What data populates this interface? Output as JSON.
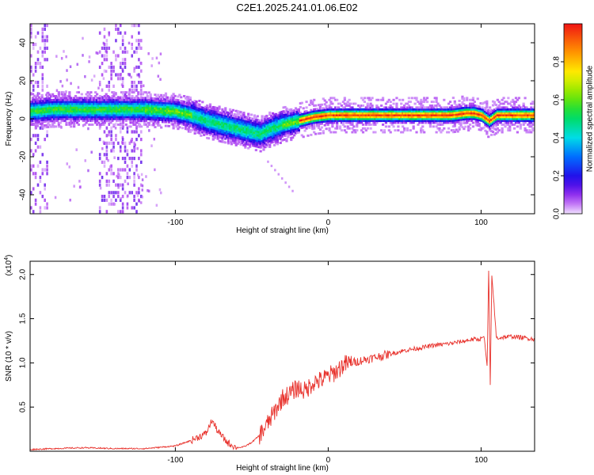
{
  "title": "C2E1.2025.241.01.06.E02",
  "chart_data": [
    {
      "type": "heatmap",
      "name": "spectrogram",
      "xlabel": "Height of straight line (km)",
      "ylabel": "Frequency (Hz)",
      "xlim": [
        -195,
        135
      ],
      "ylim": [
        -50,
        50
      ],
      "xticks": [
        -100,
        0,
        100
      ],
      "yticks": [
        -40,
        -20,
        0,
        20,
        40
      ],
      "colorbar": {
        "label": "Normalized spectral amplitude",
        "range": [
          0.0,
          1.0
        ],
        "ticks": [
          "0.0",
          "0.2",
          "0.4",
          "0.6",
          "0.8"
        ]
      },
      "ridge": {
        "description": "dominant frequency band center (Hz) vs height (km)",
        "x": [
          -195,
          -180,
          -160,
          -140,
          -120,
          -100,
          -90,
          -80,
          -70,
          -60,
          -50,
          -45,
          -40,
          -30,
          -20,
          -10,
          0,
          10,
          20,
          40,
          60,
          80,
          90,
          95,
          100,
          105,
          110,
          135
        ],
        "y": [
          4,
          5,
          5,
          5,
          5,
          4,
          2,
          -1,
          -3,
          -5,
          -7,
          -8,
          -6,
          -3,
          -1,
          1,
          2,
          2,
          2,
          2,
          2,
          2,
          3,
          3,
          2,
          -1,
          2,
          2
        ]
      }
    },
    {
      "type": "line",
      "name": "snr",
      "xlabel": "Height of straight line (km)",
      "ylabel": "SNR (10 * v/v)",
      "y_multiplier_label": "(x10",
      "y_multiplier_exp": "4",
      "xlim": [
        -195,
        135
      ],
      "ylim": [
        0,
        2.15
      ],
      "xticks": [
        -100,
        0,
        100
      ],
      "yticks": [
        0.5,
        1.0,
        1.5,
        2.0
      ],
      "ytick_labels": [
        "0.5",
        "1.0",
        "1.5",
        "2.0"
      ],
      "color": "#e8322c",
      "x": [
        -195,
        -180,
        -160,
        -140,
        -120,
        -100,
        -90,
        -80,
        -76,
        -72,
        -66,
        -60,
        -55,
        -50,
        -45,
        -40,
        -35,
        -30,
        -25,
        -20,
        -15,
        -10,
        -5,
        0,
        5,
        10,
        15,
        20,
        30,
        40,
        50,
        60,
        70,
        80,
        90,
        95,
        98,
        100,
        102,
        104,
        105,
        106,
        107,
        110,
        120,
        135
      ],
      "y": [
        0.02,
        0.03,
        0.04,
        0.03,
        0.03,
        0.06,
        0.12,
        0.2,
        0.35,
        0.22,
        0.1,
        0.04,
        0.05,
        0.1,
        0.18,
        0.3,
        0.45,
        0.6,
        0.65,
        0.72,
        0.68,
        0.78,
        0.8,
        0.85,
        0.9,
        0.98,
        1.0,
        1.02,
        1.06,
        1.1,
        1.14,
        1.17,
        1.2,
        1.22,
        1.25,
        1.27,
        1.26,
        1.28,
        1.3,
        0.95,
        2.1,
        0.75,
        2.0,
        1.28,
        1.3,
        1.27
      ]
    }
  ]
}
